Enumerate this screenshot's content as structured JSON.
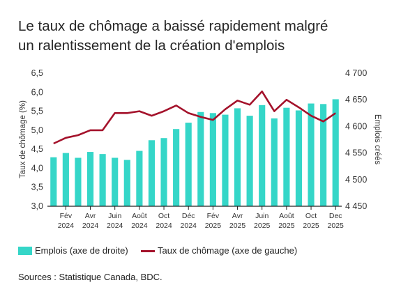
{
  "title": "Le taux de chômage a baissé rapidement malgré\nun ralentissement de la création d'emplois",
  "source": "Sources : Statistique Canada, BDC.",
  "legend": {
    "bars_label": "Emplois (axe de droite)",
    "line_label": "Taux de chômage (axe de gauche)"
  },
  "colors": {
    "bars": "#35D6C8",
    "line": "#A4122B"
  },
  "chart_data": {
    "type": "bar+line",
    "x_tick_labels": [
      {
        "month": "Fév",
        "year": "2024"
      },
      {
        "month": "Avr",
        "year": "2024"
      },
      {
        "month": "Juin",
        "year": "2024"
      },
      {
        "month": "Août",
        "year": "2024"
      },
      {
        "month": "Oct",
        "year": "2024"
      },
      {
        "month": "Déc",
        "year": "2024"
      },
      {
        "month": "Fév",
        "year": "2025"
      },
      {
        "month": "Avr",
        "year": "2025"
      },
      {
        "month": "Juin",
        "year": "2025"
      },
      {
        "month": "Août",
        "year": "2025"
      },
      {
        "month": "Oct",
        "year": "2025"
      },
      {
        "month": "Dec",
        "year": "2025"
      }
    ],
    "ylabel_left": "Taux de chômage (%)",
    "ylabel_right": "Emplois créés",
    "ylim_left": [
      3.0,
      6.5
    ],
    "yticks_left": [
      "3,0",
      "3,5",
      "4,0",
      "4,5",
      "5,0",
      "5,5",
      "6,0",
      "6,5"
    ],
    "ylim_right": [
      4450,
      4700
    ],
    "yticks_right": [
      "4 450",
      "4 500",
      "4 550",
      "4 600",
      "4 650",
      "4 700"
    ],
    "series": [
      {
        "name": "Emplois (axe de droite)",
        "type": "bar",
        "axis": "right",
        "values": [
          4542,
          4550,
          4541,
          4552,
          4548,
          4541,
          4537,
          4554,
          4574,
          4578,
          4595,
          4607,
          4627,
          4625,
          4622,
          4634,
          4620,
          4640,
          4615,
          4635,
          4630,
          4643,
          4642,
          4651
        ]
      },
      {
        "name": "Taux de chômage (axe de gauche)",
        "type": "line",
        "axis": "left",
        "values": [
          4.65,
          4.8,
          4.87,
          5.0,
          5.0,
          5.45,
          5.45,
          5.5,
          5.38,
          5.5,
          5.65,
          5.45,
          5.35,
          5.27,
          5.55,
          5.78,
          5.67,
          6.02,
          5.5,
          5.8,
          5.6,
          5.38,
          5.23,
          5.45
        ]
      }
    ]
  }
}
